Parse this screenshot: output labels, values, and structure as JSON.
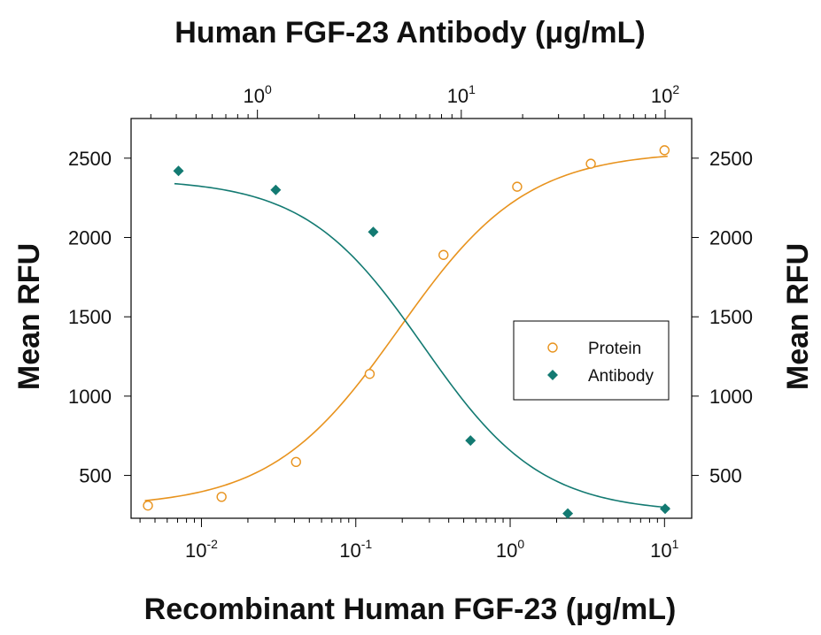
{
  "chart_data": {
    "type": "scatter",
    "title": "",
    "x_bottom": {
      "label": "Recombinant Human FGF-23 (μg/mL)",
      "scale": "log",
      "range": [
        0.0035,
        15
      ],
      "tick_labels": [
        {
          "base": "10",
          "exp": "-2",
          "value": 0.01
        },
        {
          "base": "10",
          "exp": "-1",
          "value": 0.1
        },
        {
          "base": "10",
          "exp": "0",
          "value": 1
        },
        {
          "base": "10",
          "exp": "1",
          "value": 10
        }
      ]
    },
    "x_top": {
      "label": "Human FGF-23 Antibody (μg/mL)",
      "scale": "log",
      "range": [
        0.24,
        135
      ],
      "tick_labels": [
        {
          "base": "10",
          "exp": "0",
          "value": 1
        },
        {
          "base": "10",
          "exp": "1",
          "value": 10
        },
        {
          "base": "10",
          "exp": "2",
          "value": 100
        }
      ]
    },
    "y_left": {
      "label": "Mean RFU",
      "range": [
        230,
        2750
      ],
      "ticks": [
        "500",
        "1000",
        "1500",
        "2000",
        "2500"
      ]
    },
    "y_right": {
      "label": "Mean RFU",
      "range": [
        230,
        2750
      ],
      "ticks": [
        "500",
        "1000",
        "1500",
        "2000",
        "2500"
      ]
    },
    "legend": {
      "position": "center-right"
    },
    "grid": false,
    "series": [
      {
        "name": "Protein",
        "axis": "bottom",
        "marker": "open-circle",
        "color": "#E8931E",
        "points": [
          {
            "x": 0.0045,
            "y": 310
          },
          {
            "x": 0.0135,
            "y": 365
          },
          {
            "x": 0.041,
            "y": 585
          },
          {
            "x": 0.123,
            "y": 1140
          },
          {
            "x": 0.37,
            "y": 1890
          },
          {
            "x": 1.11,
            "y": 2320
          },
          {
            "x": 3.33,
            "y": 2465
          },
          {
            "x": 10,
            "y": 2550
          }
        ],
        "fit": {
          "bottom": 300,
          "top": 2545,
          "ec50": 0.19,
          "hill": 1.05
        }
      },
      {
        "name": "Antibody",
        "axis": "top",
        "marker": "filled-diamond",
        "color": "#137A72",
        "points": [
          {
            "x": 0.41,
            "y": 2420
          },
          {
            "x": 1.23,
            "y": 2300
          },
          {
            "x": 3.7,
            "y": 2035
          },
          {
            "x": 11.1,
            "y": 720
          },
          {
            "x": 33.3,
            "y": 260
          },
          {
            "x": 100,
            "y": 290
          }
        ],
        "fit": {
          "bottom": 265,
          "top": 2370,
          "ec50": 6.5,
          "hill": 1.5
        }
      }
    ]
  }
}
